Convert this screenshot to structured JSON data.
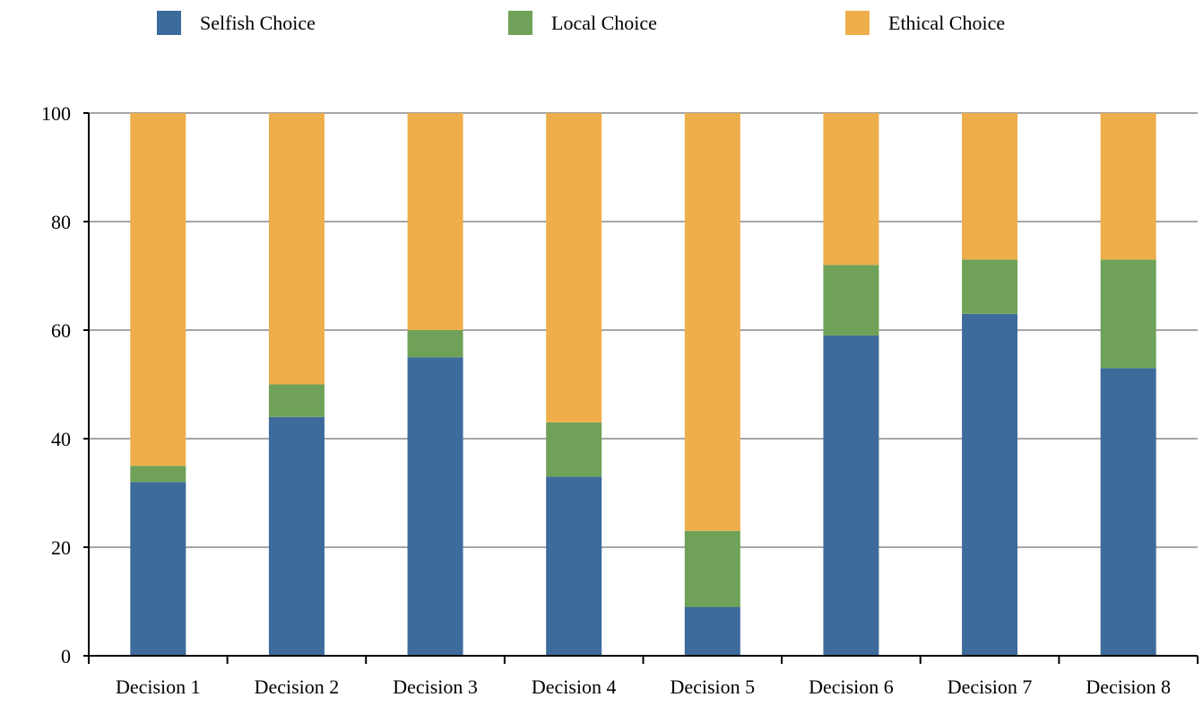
{
  "chart_data": {
    "type": "bar",
    "stacked": true,
    "title": "",
    "xlabel": "",
    "ylabel": "",
    "categories": [
      "Decision 1",
      "Decision 2",
      "Decision 3",
      "Decision 4",
      "Decision 5",
      "Decision 6",
      "Decision 7",
      "Decision 8"
    ],
    "series": [
      {
        "name": "Selfish Choice",
        "color": "#3d6b9b",
        "values": [
          32,
          44,
          55,
          33,
          9,
          59,
          63,
          53
        ]
      },
      {
        "name": "Local Choice",
        "color": "#6fa258",
        "values": [
          3,
          6,
          5,
          10,
          14,
          13,
          10,
          20
        ]
      },
      {
        "name": "Ethical Choice",
        "color": "#edae4b",
        "values": [
          65,
          50,
          40,
          57,
          77,
          28,
          27,
          27
        ]
      }
    ],
    "ylim": [
      0,
      100
    ],
    "yticks": [
      "0",
      "20",
      "40",
      "60",
      "80",
      "100"
    ],
    "grid": true,
    "legend_position": "top"
  }
}
